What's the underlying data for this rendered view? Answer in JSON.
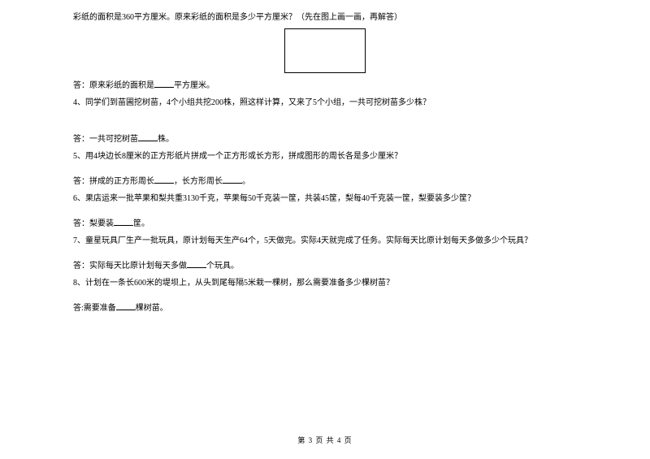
{
  "q3": {
    "intro": "彩纸的面积是360平方厘米。原来彩纸的面积是多少平方厘米？（先在图上画一画，再解答）",
    "answer_prefix": "答：原来彩纸的面积是",
    "answer_suffix": "平方厘米。"
  },
  "q4": {
    "text": "4、同学们到苗圃挖树苗，4个小组共挖200株，照这样计算，又来了5个小组，一共可挖树苗多少株？",
    "answer_prefix": "答：一共可挖树苗",
    "answer_suffix": "株。"
  },
  "q5": {
    "text": "5、用4块边长8厘米的正方形纸片拼成一个正方形或长方形，拼成图形的周长各是多少厘米？",
    "answer_prefix": "答：拼成的正方形周长",
    "answer_mid": "，长方形周长",
    "answer_suffix": "。"
  },
  "q6": {
    "text": "6、果店运来一批苹果和梨共重3130千克，苹果每50千克装一筐，共装45筐，梨每40千克装一筐，梨要装多少筐？",
    "answer_prefix": "答：梨要装",
    "answer_suffix": "筐。"
  },
  "q7": {
    "text": "7、童星玩具厂生产一批玩具，原计划每天生产64个，5天做完。实际4天就完成了任务。实际每天比原计划每天多做多少个玩具？",
    "answer_prefix": "答：实际每天比原计划每天多做",
    "answer_suffix": "个玩具。"
  },
  "q8": {
    "text": "8、计划在一条长600米的堤坝上，从头到尾每隔5米栽一棵树，那么需要准备多少棵树苗？",
    "answer_prefix": "答:需要准备",
    "answer_suffix": "棵树苗。"
  },
  "footer": "第 3 页 共 4 页"
}
